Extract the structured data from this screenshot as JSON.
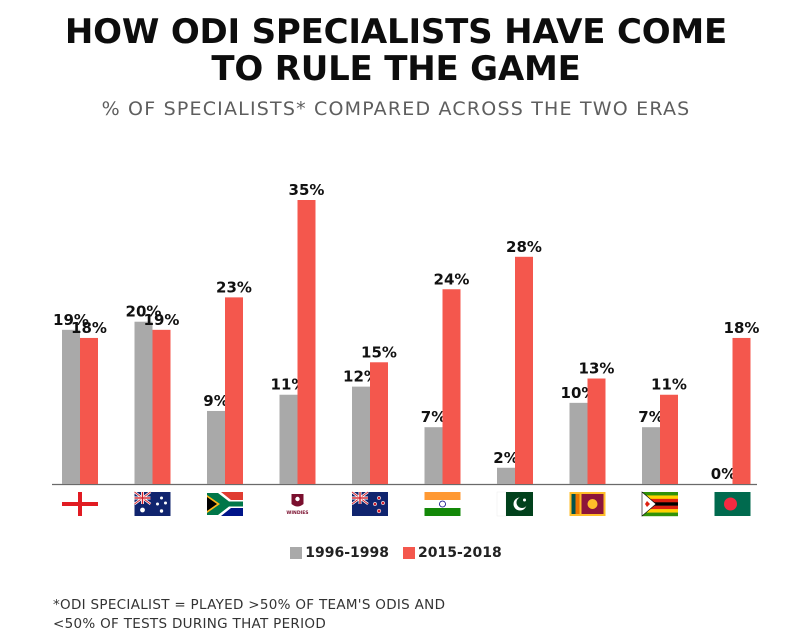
{
  "title_line1": "HOW ODI SPECIALISTS HAVE COME",
  "title_line2": "TO RULE THE GAME",
  "subtitle": "% OF SPECIALISTS* COMPARED ACROSS THE TWO ERAS",
  "colors": {
    "era1": "#a9a9a9",
    "era2": "#f4574d",
    "axis": "#6a6a6a"
  },
  "chart_data": {
    "type": "bar",
    "title": "HOW ODI SPECIALISTS HAVE COME TO RULE THE GAME",
    "subtitle": "% OF SPECIALISTS* COMPARED ACROSS THE TWO ERAS",
    "categories": [
      "England",
      "Australia",
      "South Africa",
      "West Indies",
      "New Zealand",
      "India",
      "Pakistan",
      "Sri Lanka",
      "Zimbabwe",
      "Bangladesh"
    ],
    "category_icons": [
      "england-flag",
      "australia-flag",
      "south-africa-flag",
      "west-indies-logo",
      "new-zealand-flag",
      "india-flag",
      "pakistan-flag",
      "sri-lanka-flag",
      "zimbabwe-flag",
      "bangladesh-flag"
    ],
    "series": [
      {
        "name": "1996-1998",
        "values": [
          19,
          20,
          9,
          11,
          12,
          7,
          2,
          10,
          7,
          0
        ],
        "labels": [
          "19%",
          "20%",
          "9%",
          "11%",
          "12%",
          "7%",
          "2%",
          "10%",
          "7%",
          "0%"
        ]
      },
      {
        "name": "2015-2018",
        "values": [
          18,
          19,
          23,
          35,
          15,
          24,
          28,
          13,
          11,
          18
        ],
        "labels": [
          "18%",
          "19%",
          "23%",
          "35%",
          "15%",
          "24%",
          "28%",
          "13%",
          "11%",
          "18%"
        ]
      }
    ],
    "ylim": [
      0,
      35
    ],
    "xlabel": "",
    "ylabel": "",
    "legend": "bottom-center",
    "grid": false
  },
  "windies_text": "WINDIES",
  "footnote": {
    "line1": "*ODI SPECIALIST = PLAYED >50% OF TEAM'S ODIS AND",
    "line2": "<50% OF TESTS DURING THAT PERIOD"
  }
}
